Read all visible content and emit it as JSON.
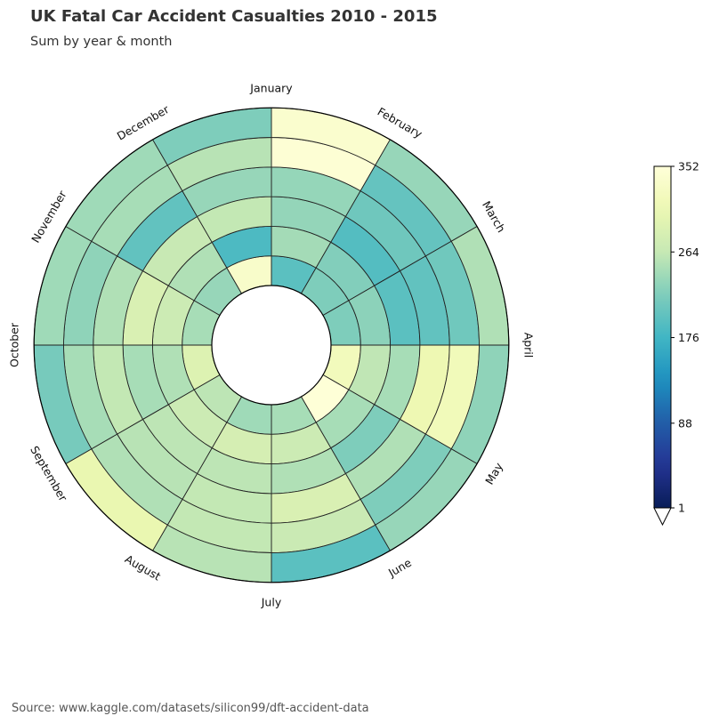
{
  "title": "UK Fatal Car Accident Casualties 2010 - 2015",
  "subtitle": "Sum by year & month",
  "source": "Source: www.kaggle.com/datasets/silicon99/dft-accident-data",
  "chart_data": {
    "type": "heatmap",
    "projection": "polar",
    "categories": [
      "January",
      "February",
      "March",
      "April",
      "May",
      "June",
      "July",
      "August",
      "September",
      "October",
      "November",
      "December"
    ],
    "rings": [
      "2010",
      "2011",
      "2012",
      "2013",
      "2014",
      "2015"
    ],
    "values": [
      [
        195,
        243,
        233,
        234,
        346,
        340
      ],
      [
        220,
        222,
        190,
        209,
        202,
        235
      ],
      [
        220,
        228,
        195,
        200,
        210,
        250
      ],
      [
        320,
        260,
        245,
        310,
        318,
        230
      ],
      [
        350,
        245,
        220,
        250,
        220,
        235
      ],
      [
        245,
        270,
        250,
        285,
        268,
        195
      ],
      [
        240,
        280,
        258,
        262,
        262,
        255
      ],
      [
        258,
        270,
        258,
        255,
        250,
        305
      ],
      [
        290,
        250,
        245,
        262,
        245,
        215
      ],
      [
        245,
        270,
        285,
        250,
        230,
        240
      ],
      [
        235,
        250,
        265,
        200,
        245,
        240
      ],
      [
        335,
        185,
        262,
        235,
        255,
        220
      ]
    ],
    "colorbar": {
      "min": 1,
      "max": 352,
      "ticks": [
        1,
        88,
        176,
        264,
        352
      ],
      "colormap": "YlGnBu",
      "extend": "min"
    },
    "colors": {
      "edge": "#222222"
    }
  }
}
